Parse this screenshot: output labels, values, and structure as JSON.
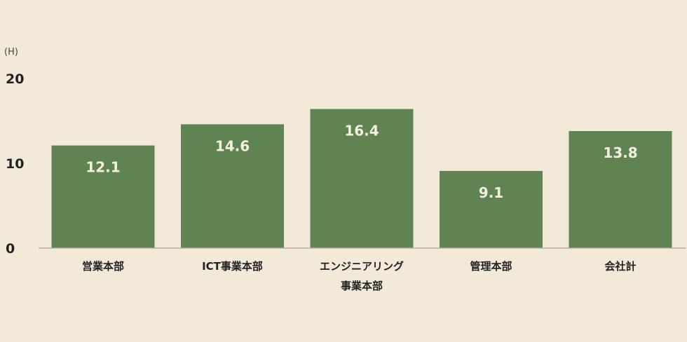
{
  "chart_data": {
    "type": "bar",
    "unit_label": "(H)",
    "categories": [
      [
        "営業本部"
      ],
      [
        "ICT事業本部"
      ],
      [
        "エンジニアリング",
        "事業本部"
      ],
      [
        "管理本部"
      ],
      [
        "会社計"
      ]
    ],
    "values": [
      12.1,
      14.6,
      16.4,
      9.1,
      13.8
    ],
    "value_labels": [
      "12.1",
      "14.6",
      "16.4",
      "9.1",
      "13.8"
    ],
    "y_ticks": [
      0,
      10,
      20
    ],
    "y_tick_labels": [
      "0",
      "10",
      "20"
    ],
    "ylim": [
      0,
      20
    ],
    "grid": false,
    "colors": {
      "bar": "#5f8352",
      "axis": "#b8ad96",
      "background": "#f2e9d8"
    }
  }
}
